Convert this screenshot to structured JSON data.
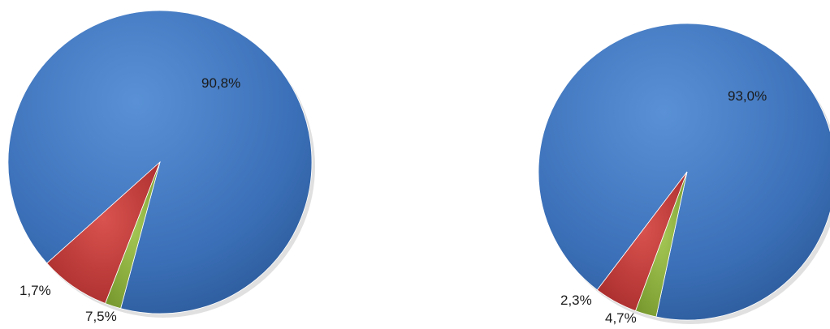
{
  "chart_data": [
    {
      "type": "pie",
      "slices": [
        {
          "label": "90,8%",
          "value": 90.8,
          "color": "#3f76c0"
        },
        {
          "label": "7,5%",
          "value": 7.5,
          "color": "#c0393b"
        },
        {
          "label": "1,7%",
          "value": 1.7,
          "color": "#8fb13e"
        }
      ]
    },
    {
      "type": "pie",
      "slices": [
        {
          "label": "93,0%",
          "value": 93.0,
          "color": "#3f76c0"
        },
        {
          "label": "4,7%",
          "value": 4.7,
          "color": "#c0393b"
        },
        {
          "label": "2,3%",
          "value": 2.3,
          "color": "#8fb13e"
        }
      ]
    }
  ]
}
